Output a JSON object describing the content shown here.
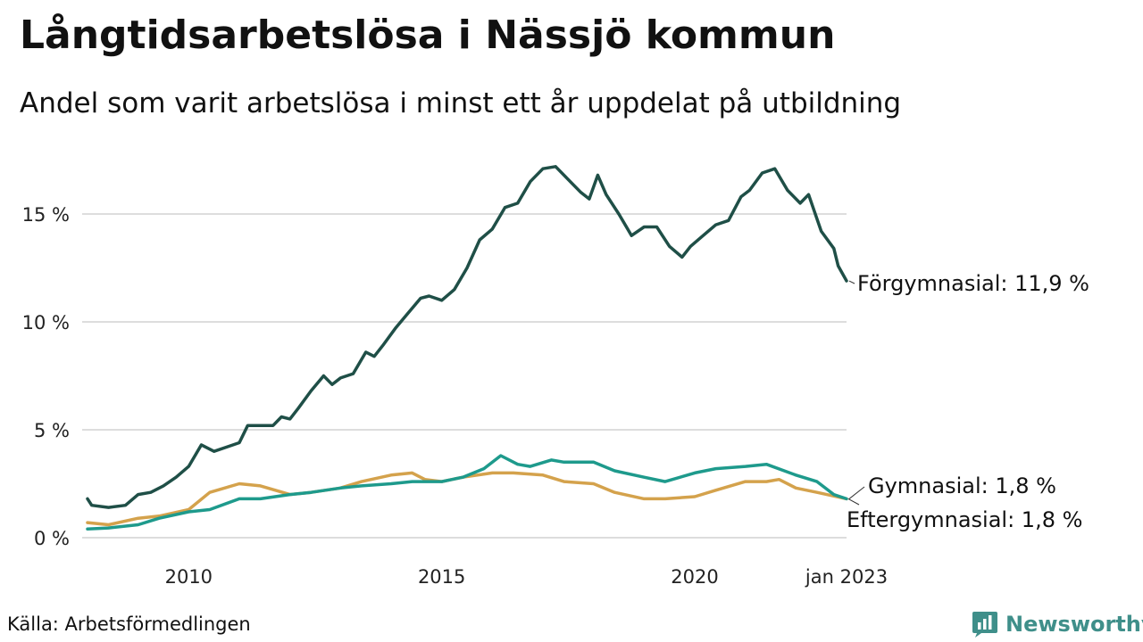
{
  "title": "Långtidsarbetslösa i Nässjö kommun",
  "subtitle": "Andel som varit arbetslösa i minst ett år uppdelat på utbildning",
  "source": "Källa: Arbetsförmedlingen",
  "brand": "Newsworthy",
  "colors": {
    "forgymnasial": "#1f4f47",
    "gymnasial": "#1e9a8c",
    "eftergymnasial": "#d4a24c",
    "grid": "#dddddd",
    "brand": "#3f8f8a"
  },
  "chart_data": {
    "type": "line",
    "xlim": [
      "2008-01",
      "2023-01"
    ],
    "ylim": [
      0,
      17.5
    ],
    "grid": true,
    "y_ticks": [
      {
        "value": 0,
        "label": "0 %"
      },
      {
        "value": 5,
        "label": "5 %"
      },
      {
        "value": 10,
        "label": "10 %"
      },
      {
        "value": 15,
        "label": "15 %"
      }
    ],
    "x_ticks": [
      {
        "value": "2010-01",
        "label": "2010"
      },
      {
        "value": "2015-01",
        "label": "2015"
      },
      {
        "value": "2020-01",
        "label": "2020"
      },
      {
        "value": "2023-01",
        "label": "jan 2023"
      }
    ],
    "series": [
      {
        "name": "Förgymnasial",
        "end_label": "Förgymnasial: 11,9 %",
        "color_key": "forgymnasial",
        "points": [
          [
            "2008-01",
            1.8
          ],
          [
            "2008-02",
            1.5
          ],
          [
            "2008-06",
            1.4
          ],
          [
            "2008-10",
            1.5
          ],
          [
            "2009-01",
            2.0
          ],
          [
            "2009-04",
            2.1
          ],
          [
            "2009-07",
            2.4
          ],
          [
            "2009-10",
            2.8
          ],
          [
            "2010-01",
            3.3
          ],
          [
            "2010-04",
            4.3
          ],
          [
            "2010-07",
            4.0
          ],
          [
            "2010-10",
            4.2
          ],
          [
            "2011-01",
            4.4
          ],
          [
            "2011-03",
            5.2
          ],
          [
            "2011-06",
            5.2
          ],
          [
            "2011-09",
            5.2
          ],
          [
            "2011-11",
            5.6
          ],
          [
            "2012-01",
            5.5
          ],
          [
            "2012-03",
            6.0
          ],
          [
            "2012-06",
            6.8
          ],
          [
            "2012-09",
            7.5
          ],
          [
            "2012-11",
            7.1
          ],
          [
            "2013-01",
            7.4
          ],
          [
            "2013-04",
            7.6
          ],
          [
            "2013-07",
            8.6
          ],
          [
            "2013-09",
            8.4
          ],
          [
            "2013-11",
            8.9
          ],
          [
            "2014-02",
            9.7
          ],
          [
            "2014-05",
            10.4
          ],
          [
            "2014-08",
            11.1
          ],
          [
            "2014-10",
            11.2
          ],
          [
            "2015-01",
            11.0
          ],
          [
            "2015-04",
            11.5
          ],
          [
            "2015-07",
            12.5
          ],
          [
            "2015-10",
            13.8
          ],
          [
            "2016-01",
            14.3
          ],
          [
            "2016-04",
            15.3
          ],
          [
            "2016-07",
            15.5
          ],
          [
            "2016-10",
            16.5
          ],
          [
            "2017-01",
            17.1
          ],
          [
            "2017-04",
            17.2
          ],
          [
            "2017-07",
            16.6
          ],
          [
            "2017-10",
            16.0
          ],
          [
            "2017-12",
            15.7
          ],
          [
            "2018-02",
            16.8
          ],
          [
            "2018-04",
            15.9
          ],
          [
            "2018-07",
            15.0
          ],
          [
            "2018-10",
            14.0
          ],
          [
            "2019-01",
            14.4
          ],
          [
            "2019-04",
            14.4
          ],
          [
            "2019-07",
            13.5
          ],
          [
            "2019-10",
            13.0
          ],
          [
            "2019-12",
            13.5
          ],
          [
            "2020-03",
            14.0
          ],
          [
            "2020-06",
            14.5
          ],
          [
            "2020-09",
            14.7
          ],
          [
            "2020-12",
            15.8
          ],
          [
            "2021-02",
            16.1
          ],
          [
            "2021-05",
            16.9
          ],
          [
            "2021-08",
            17.1
          ],
          [
            "2021-11",
            16.1
          ],
          [
            "2022-02",
            15.5
          ],
          [
            "2022-04",
            15.9
          ],
          [
            "2022-07",
            14.2
          ],
          [
            "2022-10",
            13.4
          ],
          [
            "2022-11",
            12.6
          ],
          [
            "2023-01",
            11.9
          ]
        ]
      },
      {
        "name": "Gymnasial",
        "end_label": "Gymnasial:  1,8 %",
        "color_key": "gymnasial",
        "points": [
          [
            "2008-01",
            0.4
          ],
          [
            "2008-06",
            0.45
          ],
          [
            "2009-01",
            0.6
          ],
          [
            "2009-06",
            0.9
          ],
          [
            "2010-01",
            1.2
          ],
          [
            "2010-06",
            1.3
          ],
          [
            "2011-01",
            1.8
          ],
          [
            "2011-06",
            1.8
          ],
          [
            "2012-01",
            2.0
          ],
          [
            "2012-06",
            2.1
          ],
          [
            "2013-01",
            2.3
          ],
          [
            "2013-06",
            2.4
          ],
          [
            "2014-01",
            2.5
          ],
          [
            "2014-06",
            2.6
          ],
          [
            "2015-01",
            2.6
          ],
          [
            "2015-06",
            2.8
          ],
          [
            "2015-11",
            3.2
          ],
          [
            "2016-03",
            3.8
          ],
          [
            "2016-07",
            3.4
          ],
          [
            "2016-10",
            3.3
          ],
          [
            "2017-03",
            3.6
          ],
          [
            "2017-06",
            3.5
          ],
          [
            "2018-01",
            3.5
          ],
          [
            "2018-06",
            3.1
          ],
          [
            "2019-01",
            2.8
          ],
          [
            "2019-06",
            2.6
          ],
          [
            "2020-01",
            3.0
          ],
          [
            "2020-06",
            3.2
          ],
          [
            "2021-01",
            3.3
          ],
          [
            "2021-06",
            3.4
          ],
          [
            "2022-01",
            2.9
          ],
          [
            "2022-06",
            2.6
          ],
          [
            "2022-10",
            2.0
          ],
          [
            "2023-01",
            1.8
          ]
        ]
      },
      {
        "name": "Eftergymnasial",
        "end_label": "Eftergymnasial:  1,8 %",
        "color_key": "eftergymnasial",
        "points": [
          [
            "2008-01",
            0.7
          ],
          [
            "2008-06",
            0.6
          ],
          [
            "2009-01",
            0.9
          ],
          [
            "2009-06",
            1.0
          ],
          [
            "2010-01",
            1.3
          ],
          [
            "2010-06",
            2.1
          ],
          [
            "2011-01",
            2.5
          ],
          [
            "2011-06",
            2.4
          ],
          [
            "2012-01",
            2.0
          ],
          [
            "2012-06",
            2.1
          ],
          [
            "2013-01",
            2.3
          ],
          [
            "2013-06",
            2.6
          ],
          [
            "2014-01",
            2.9
          ],
          [
            "2014-06",
            3.0
          ],
          [
            "2014-09",
            2.7
          ],
          [
            "2015-01",
            2.6
          ],
          [
            "2015-06",
            2.8
          ],
          [
            "2016-01",
            3.0
          ],
          [
            "2016-06",
            3.0
          ],
          [
            "2017-01",
            2.9
          ],
          [
            "2017-06",
            2.6
          ],
          [
            "2018-01",
            2.5
          ],
          [
            "2018-06",
            2.1
          ],
          [
            "2019-01",
            1.8
          ],
          [
            "2019-06",
            1.8
          ],
          [
            "2020-01",
            1.9
          ],
          [
            "2020-06",
            2.2
          ],
          [
            "2021-01",
            2.6
          ],
          [
            "2021-06",
            2.6
          ],
          [
            "2021-09",
            2.7
          ],
          [
            "2022-01",
            2.3
          ],
          [
            "2022-06",
            2.1
          ],
          [
            "2023-01",
            1.8
          ]
        ]
      }
    ]
  }
}
